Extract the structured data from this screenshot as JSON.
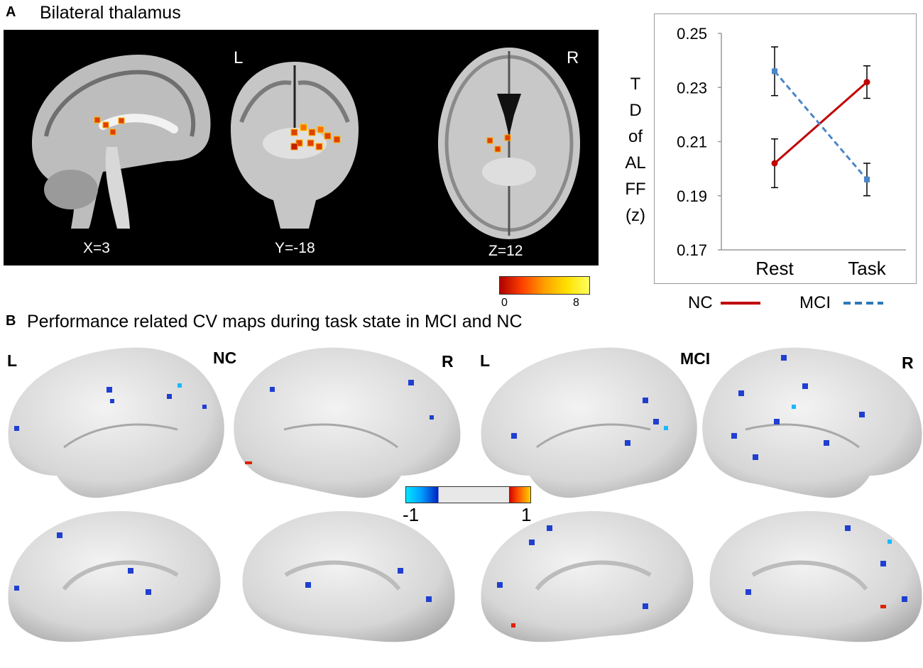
{
  "panel_a": {
    "letter": "A",
    "title": "Bilateral thalamus",
    "slices": [
      "X=3",
      "Y=-18",
      "Z=12"
    ],
    "left_marker": "L",
    "right_marker": "R",
    "colorbar": {
      "min_label": "0",
      "max_label": "8",
      "colors": [
        "#b00000",
        "#ff4000",
        "#ffa000",
        "#ffe000",
        "#ffff60"
      ]
    }
  },
  "chart_data": {
    "type": "line",
    "categories": [
      "Rest",
      "Task"
    ],
    "ylabel_lines": [
      "T",
      "D",
      "of",
      "AL",
      "FF",
      "(z)"
    ],
    "ylim": [
      0.17,
      0.25
    ],
    "yticks": [
      "0.25",
      "0.23",
      "0.21",
      "0.19",
      "0.17"
    ],
    "series": [
      {
        "name": "NC",
        "values": [
          0.202,
          0.232
        ],
        "errors": [
          0.009,
          0.006
        ],
        "color": "#c00000",
        "style": "solid"
      },
      {
        "name": "MCI",
        "values": [
          0.236,
          0.196
        ],
        "errors": [
          0.009,
          0.006
        ],
        "color": "#4a86c8",
        "style": "dashed"
      }
    ]
  },
  "panel_b": {
    "letter": "B",
    "title": "Performance related CV maps during task state in MCI and NC",
    "labels": {
      "nc_left": "L",
      "nc": "NC",
      "nc_right": "R",
      "mci_left": "L",
      "mci": "MCI",
      "mci_right": "R"
    },
    "colorbar": {
      "min_label": "-1",
      "max_label": "1"
    }
  }
}
